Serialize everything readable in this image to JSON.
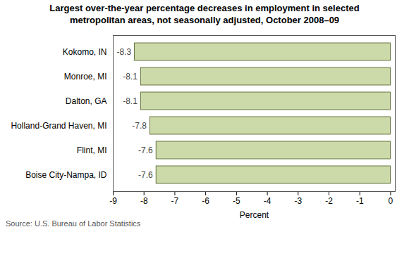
{
  "chart_data": {
    "type": "bar",
    "orientation": "horizontal",
    "title": "Largest over-the-year percentage decreases in employment in selected\nmetropolitan areas, not seasonally adjusted, October 2008–09",
    "categories": [
      "Kokomo, IN",
      "Monroe, MI",
      "Dalton, GA",
      "Holland-Grand Haven, MI",
      "Flint, MI",
      "Boise City-Nampa, ID"
    ],
    "values": [
      -8.3,
      -8.1,
      -8.1,
      -7.8,
      -7.6,
      -7.6
    ],
    "data_labels": true,
    "color": "#ccd9a8",
    "xlim": [
      -9,
      0.15
    ],
    "xticks": [
      -9,
      -8,
      -7,
      -6,
      -5,
      -4,
      -3,
      -2,
      -1,
      0
    ],
    "xlabel": "Percent",
    "caption": "Source: U.S. Bureau of Labor Statistics",
    "grid": false
  }
}
